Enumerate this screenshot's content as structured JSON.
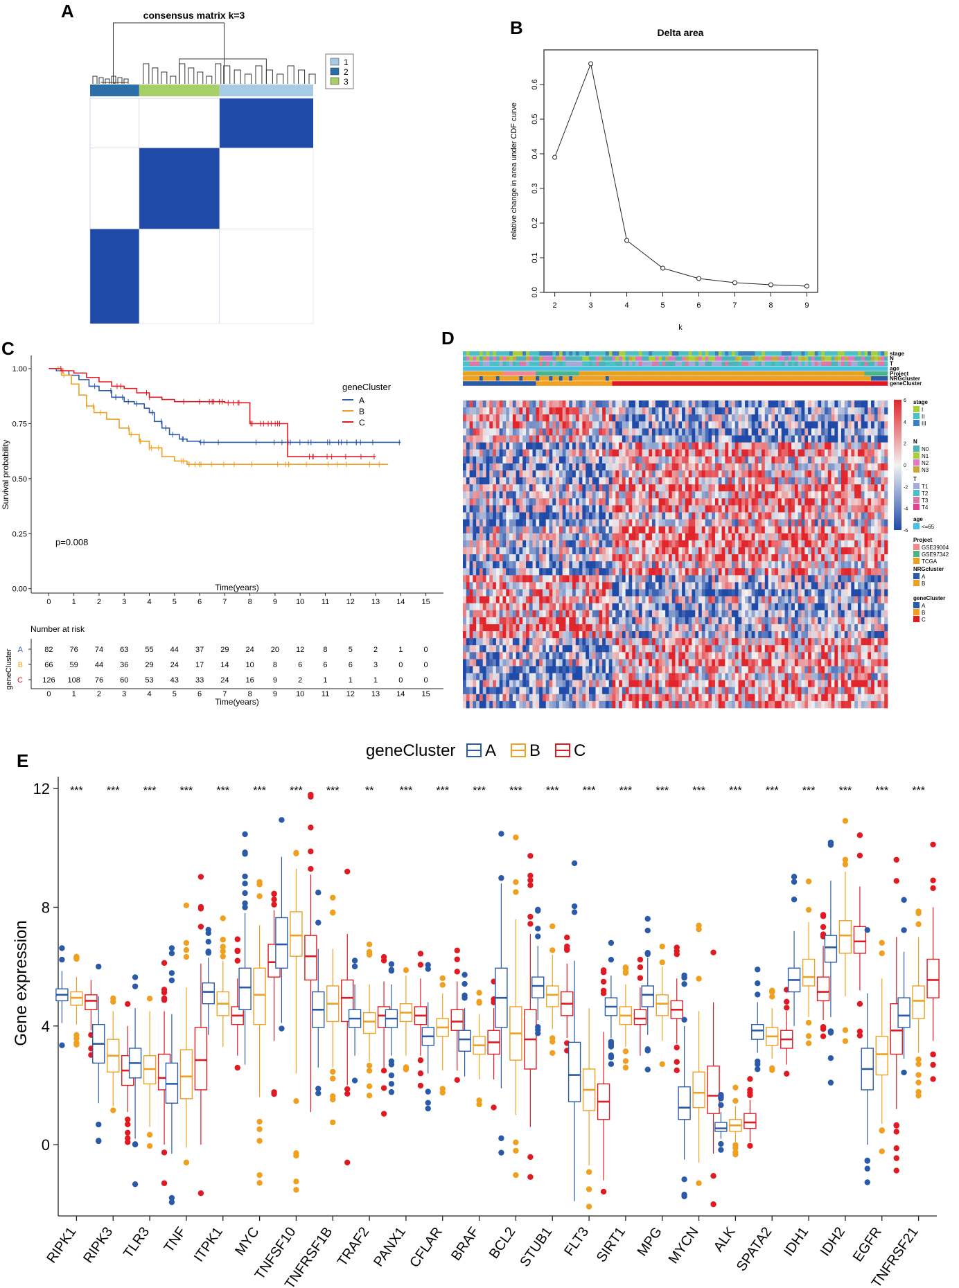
{
  "panel_labels": {
    "a": "A",
    "b": "B",
    "c": "C",
    "d": "D",
    "e": "E"
  },
  "colors": {
    "matrix": "#1f4aa8",
    "cluster1": "#a8cbe5",
    "cluster2": "#2c6ea8",
    "cluster3": "#a6cf68",
    "groupA": "#2a5aa8",
    "groupB": "#f0a020",
    "groupC": "#e01a22",
    "heatHigh": "#e0262c",
    "heatMid": "#f2f2f2",
    "heatLow": "#1f4aa8"
  },
  "chart_data": [
    {
      "id": "A",
      "type": "heatmap",
      "title": "consensus matrix k=3",
      "legend": [
        "1",
        "2",
        "3"
      ],
      "clusters": [
        {
          "label": "2",
          "share": 0.22
        },
        {
          "label": "3",
          "share": 0.36
        },
        {
          "label": "1",
          "share": 0.42
        }
      ]
    },
    {
      "id": "B",
      "type": "line",
      "title": "Delta area",
      "xlabel": "k",
      "ylabel": "relative change in area under CDF curve",
      "x": [
        2,
        3,
        4,
        5,
        6,
        7,
        8,
        9
      ],
      "y": [
        0.39,
        0.66,
        0.15,
        0.07,
        0.04,
        0.028,
        0.022,
        0.018
      ],
      "yticks": [
        "0.0",
        "0.1",
        "0.2",
        "0.3",
        "0.4",
        "0.5",
        "0.6"
      ],
      "xticks": [
        "2",
        "3",
        "4",
        "5",
        "6",
        "7",
        "8",
        "9"
      ],
      "ylim": [
        0,
        0.7
      ],
      "xlim": [
        1.7,
        9.3
      ]
    },
    {
      "id": "C",
      "type": "line",
      "title": "",
      "xlabel": "Time(years)",
      "ylabel": "Survival probability",
      "legend_title": "geneCluster",
      "pvalue": "p=0.008",
      "xlim": [
        -0.7,
        15.7
      ],
      "ylim": [
        -0.02,
        1.06
      ],
      "xticks": [
        "0",
        "1",
        "2",
        "3",
        "4",
        "5",
        "6",
        "7",
        "8",
        "9",
        "10",
        "11",
        "12",
        "13",
        "14",
        "15"
      ],
      "yticks": [
        "0.00",
        "0.25",
        "0.50",
        "0.75",
        "1.00"
      ],
      "series": [
        {
          "name": "A",
          "times": [
            0,
            0.3,
            0.8,
            1.2,
            1.6,
            2.0,
            2.5,
            3.0,
            3.4,
            3.8,
            4.0,
            4.2,
            4.5,
            4.8,
            5.2,
            5.5,
            6.0,
            14.0
          ],
          "values": [
            1.0,
            0.99,
            0.97,
            0.95,
            0.92,
            0.9,
            0.87,
            0.85,
            0.84,
            0.82,
            0.8,
            0.76,
            0.73,
            0.7,
            0.68,
            0.67,
            0.665,
            0.665
          ]
        },
        {
          "name": "B",
          "times": [
            0,
            0.5,
            0.9,
            1.2,
            1.5,
            1.8,
            2.3,
            2.8,
            3.2,
            3.6,
            4.0,
            4.5,
            5.0,
            5.5,
            13.5
          ],
          "values": [
            1.0,
            0.97,
            0.93,
            0.88,
            0.83,
            0.8,
            0.77,
            0.73,
            0.7,
            0.67,
            0.64,
            0.6,
            0.58,
            0.565,
            0.565
          ]
        },
        {
          "name": "C",
          "times": [
            0,
            0.5,
            1.0,
            1.5,
            2.0,
            2.5,
            3.0,
            3.5,
            4.0,
            4.5,
            5.0,
            7.0,
            8.0,
            9.5,
            13.0
          ],
          "values": [
            1.0,
            0.99,
            0.98,
            0.96,
            0.94,
            0.92,
            0.91,
            0.89,
            0.87,
            0.86,
            0.85,
            0.845,
            0.75,
            0.6,
            0.6
          ]
        }
      ],
      "risk_table": {
        "title": "Number at risk",
        "row_title": "geneCluster",
        "rows": [
          {
            "name": "A",
            "values": [
              "82",
              "76",
              "74",
              "63",
              "55",
              "44",
              "37",
              "29",
              "24",
              "20",
              "12",
              "8",
              "5",
              "2",
              "1",
              "0"
            ]
          },
          {
            "name": "B",
            "values": [
              "66",
              "59",
              "44",
              "36",
              "29",
              "24",
              "17",
              "14",
              "10",
              "8",
              "6",
              "6",
              "6",
              "3",
              "0",
              "0"
            ]
          },
          {
            "name": "C",
            "values": [
              "126",
              "108",
              "76",
              "60",
              "53",
              "43",
              "33",
              "24",
              "16",
              "9",
              "2",
              "1",
              "1",
              "1",
              "0",
              "0"
            ]
          }
        ]
      }
    },
    {
      "id": "D",
      "type": "heatmap",
      "annotation_rows": [
        "stage",
        "N",
        "T",
        "age",
        "Project",
        "NRGcluster",
        "geneCluster"
      ],
      "scale_ticks": [
        "6",
        "4",
        "2",
        "0",
        "-2",
        "-4",
        "-6"
      ],
      "legends": [
        {
          "title": "stage",
          "items": [
            {
              "label": "I",
              "color": "#a6cf3a"
            },
            {
              "label": "II",
              "color": "#49c1c6"
            },
            {
              "label": "III",
              "color": "#3d7fc2"
            }
          ]
        },
        {
          "title": "N",
          "items": [
            {
              "label": "N0",
              "color": "#4fb3b5"
            },
            {
              "label": "N1",
              "color": "#a6cf3a"
            },
            {
              "label": "N2",
              "color": "#e07ac0"
            },
            {
              "label": "N3",
              "color": "#c8a83a"
            }
          ]
        },
        {
          "title": "T",
          "items": [
            {
              "label": "T1",
              "color": "#a8a8d8"
            },
            {
              "label": "T2",
              "color": "#49c1c6"
            },
            {
              "label": "T3",
              "color": "#d77aa6"
            },
            {
              "label": "T4",
              "color": "#e04090"
            }
          ]
        },
        {
          "title": "age",
          "items": [
            {
              "label": "<=65",
              "color": "#49c1e0"
            }
          ]
        },
        {
          "title": "Project",
          "items": [
            {
              "label": "GSE39004",
              "color": "#f08a8a"
            },
            {
              "label": "GSE97342",
              "color": "#4fb38a"
            },
            {
              "label": "TCGA",
              "color": "#e8a020"
            }
          ]
        },
        {
          "title": "NRGcluster",
          "items": [
            {
              "label": "A",
              "color": "#2a5aa8"
            },
            {
              "label": "B",
              "color": "#f0a020"
            }
          ]
        },
        {
          "title": "geneCluster",
          "items": [
            {
              "label": "A",
              "color": "#2a5aa8"
            },
            {
              "label": "B",
              "color": "#f0a020"
            },
            {
              "label": "C",
              "color": "#e01a22"
            }
          ]
        }
      ]
    },
    {
      "id": "E",
      "type": "box",
      "legend_title": "geneCluster",
      "ylabel": "Gene expression",
      "ylim": [
        -2.4,
        12.4
      ],
      "yticks": [
        "0",
        "4",
        "8",
        "12"
      ],
      "series_names": [
        "A",
        "B",
        "C"
      ],
      "categories": [
        "RIPK1",
        "RIPK3",
        "TLR3",
        "TNF",
        "ITPK1",
        "MYC",
        "TNFSF10",
        "TNFRSF1B",
        "TRAF2",
        "PANX1",
        "CFLAR",
        "BRAF",
        "BCL2",
        "STUB1",
        "FLT3",
        "SIRT1",
        "MPG",
        "MYCN",
        "ALK",
        "SPATA2",
        "IDH1",
        "IDH2",
        "EGFR",
        "TNFRSF21"
      ],
      "significance": [
        "***",
        "***",
        "***",
        "***",
        "***",
        "***",
        "***",
        "***",
        "**",
        "***",
        "***",
        "***",
        "***",
        "***",
        "***",
        "***",
        "***",
        "***",
        "***",
        "***",
        "***",
        "***",
        "***",
        "***"
      ],
      "boxes": [
        [
          [
            4.1,
            4.85,
            5.05,
            5.25,
            5.85
          ],
          [
            4.05,
            4.7,
            4.95,
            5.15,
            5.65
          ],
          [
            3.85,
            4.55,
            4.85,
            5.05,
            5.55
          ]
        ],
        [
          [
            1.4,
            2.75,
            3.4,
            4.05,
            5.0
          ],
          [
            1.3,
            2.45,
            3.0,
            3.55,
            4.5
          ],
          [
            1.1,
            2.0,
            2.5,
            3.0,
            4.0
          ]
        ],
        [
          [
            0.2,
            2.25,
            2.75,
            3.25,
            4.6
          ],
          [
            0.6,
            2.05,
            2.55,
            3.0,
            4.5
          ],
          [
            0.0,
            1.85,
            2.25,
            3.05,
            4.5
          ]
        ],
        [
          [
            -0.3,
            1.4,
            2.05,
            2.75,
            4.4
          ],
          [
            -0.1,
            1.55,
            2.3,
            3.2,
            5.3
          ],
          [
            0.0,
            1.85,
            2.85,
            3.95,
            6.1
          ]
        ],
        [
          [
            3.7,
            4.75,
            5.15,
            5.45,
            6.3
          ],
          [
            3.3,
            4.35,
            4.75,
            5.15,
            6.2
          ],
          [
            3.0,
            4.05,
            4.35,
            4.65,
            5.6
          ]
        ],
        [
          [
            2.7,
            4.55,
            5.3,
            5.95,
            7.8
          ],
          [
            1.6,
            4.05,
            5.05,
            5.95,
            7.4
          ],
          [
            3.5,
            5.65,
            6.15,
            6.75,
            7.9
          ]
        ],
        [
          [
            4.1,
            5.95,
            6.75,
            7.65,
            9.7
          ],
          [
            2.4,
            6.35,
            7.05,
            7.85,
            9.3
          ],
          [
            1.1,
            5.55,
            6.35,
            7.05,
            9.1
          ]
        ],
        [
          [
            2.6,
            3.95,
            4.55,
            5.15,
            6.6
          ],
          [
            2.6,
            4.15,
            4.75,
            5.35,
            6.6
          ],
          [
            2.0,
            4.15,
            4.95,
            5.55,
            7.1
          ]
        ],
        [
          [
            3.0,
            3.95,
            4.25,
            4.55,
            5.4
          ],
          [
            2.8,
            3.75,
            4.15,
            4.45,
            5.4
          ],
          [
            2.6,
            3.95,
            4.35,
            4.65,
            5.5
          ]
        ],
        [
          [
            3.0,
            3.95,
            4.25,
            4.55,
            5.4
          ],
          [
            3.0,
            4.15,
            4.45,
            4.75,
            5.7
          ],
          [
            3.0,
            4.05,
            4.35,
            4.65,
            5.6
          ]
        ],
        [
          [
            2.4,
            3.35,
            3.65,
            3.95,
            4.8
          ],
          [
            2.5,
            3.65,
            3.95,
            4.25,
            5.1
          ],
          [
            2.5,
            3.85,
            4.15,
            4.55,
            5.5
          ]
        ],
        [
          [
            2.3,
            3.15,
            3.55,
            3.85,
            4.6
          ],
          [
            2.2,
            3.05,
            3.35,
            3.65,
            4.4
          ],
          [
            2.2,
            3.05,
            3.45,
            3.85,
            4.6
          ]
        ],
        [
          [
            1.9,
            3.95,
            4.95,
            5.95,
            8.8
          ],
          [
            1.0,
            2.85,
            3.75,
            4.65,
            7.6
          ],
          [
            0.6,
            2.55,
            3.55,
            4.55,
            7.1
          ]
        ],
        [
          [
            4.2,
            4.95,
            5.35,
            5.65,
            6.7
          ],
          [
            3.9,
            4.65,
            5.05,
            5.35,
            6.4
          ],
          [
            3.6,
            4.35,
            4.75,
            5.15,
            6.1
          ]
        ],
        [
          [
            -1.9,
            1.45,
            2.35,
            3.45,
            6.2
          ],
          [
            -0.7,
            1.15,
            1.85,
            2.55,
            4.6
          ],
          [
            -1.2,
            0.85,
            1.45,
            2.05,
            3.8
          ]
        ],
        [
          [
            3.6,
            4.35,
            4.65,
            4.95,
            5.7
          ],
          [
            3.3,
            4.05,
            4.35,
            4.65,
            5.4
          ],
          [
            3.0,
            4.05,
            4.25,
            4.55,
            5.3
          ]
        ],
        [
          [
            3.7,
            4.65,
            5.05,
            5.35,
            6.3
          ],
          [
            3.5,
            4.35,
            4.75,
            5.05,
            6.0
          ],
          [
            3.4,
            4.25,
            4.55,
            4.85,
            5.6
          ]
        ],
        [
          [
            -0.5,
            0.85,
            1.25,
            1.95,
            4.0
          ],
          [
            -0.6,
            1.25,
            1.75,
            2.45,
            4.5
          ],
          [
            -0.3,
            1.05,
            1.65,
            2.65,
            4.8
          ]
        ],
        [
          [
            0.2,
            0.45,
            0.55,
            0.75,
            1.1
          ],
          [
            0.1,
            0.45,
            0.65,
            0.85,
            1.3
          ],
          [
            0.1,
            0.55,
            0.75,
            1.05,
            1.5
          ]
        ],
        [
          [
            3.1,
            3.55,
            3.85,
            4.05,
            4.8
          ],
          [
            2.9,
            3.35,
            3.65,
            3.95,
            4.6
          ],
          [
            2.7,
            3.25,
            3.55,
            3.85,
            4.5
          ]
        ],
        [
          [
            4.0,
            5.15,
            5.55,
            5.95,
            7.2
          ],
          [
            4.3,
            5.35,
            5.65,
            6.25,
            7.5
          ],
          [
            4.2,
            4.85,
            5.15,
            5.65,
            6.7
          ]
        ],
        [
          [
            4.3,
            6.15,
            6.65,
            7.05,
            8.9
          ],
          [
            5.0,
            6.45,
            7.05,
            7.55,
            9.2
          ],
          [
            5.2,
            6.45,
            6.85,
            7.35,
            8.7
          ]
        ],
        [
          [
            0.0,
            1.85,
            2.55,
            3.25,
            5.1
          ],
          [
            0.7,
            2.35,
            3.05,
            3.65,
            5.6
          ],
          [
            1.2,
            3.05,
            3.85,
            4.75,
            7.0
          ]
        ],
        [
          [
            2.9,
            3.95,
            4.35,
            4.95,
            6.5
          ],
          [
            3.1,
            4.25,
            4.85,
            5.35,
            7.0
          ],
          [
            3.5,
            4.95,
            5.55,
            6.25,
            8.0
          ]
        ]
      ]
    }
  ]
}
